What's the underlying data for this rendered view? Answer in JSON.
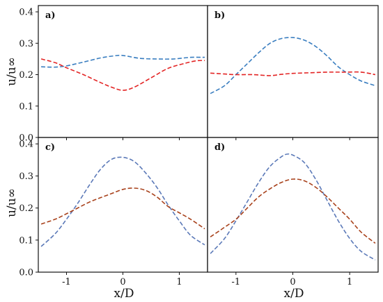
{
  "figure": {
    "ylabel": "u/u∞",
    "xlabel": "x/D"
  },
  "colors": {
    "blue": "#3a7ec0",
    "red": "#e32424",
    "brown": "#a8411b",
    "slate": "#5b79b8",
    "axes": "#111111"
  },
  "chart_data": [
    {
      "type": "line",
      "panel": "a)",
      "xlim": [
        -1.5,
        1.5
      ],
      "ylim": [
        0,
        0.42
      ],
      "xticks": [
        -1,
        0,
        1
      ],
      "yticks": [
        "0.0",
        "0.1",
        "0.2",
        "0.3",
        "0.4"
      ],
      "show_yticks": true,
      "show_xticks": false,
      "series": [
        {
          "color": "blue",
          "x": [
            -1.45,
            -1.2,
            -1.0,
            -0.7,
            -0.4,
            -0.15,
            0.0,
            0.3,
            0.6,
            0.9,
            1.2,
            1.45
          ],
          "values": [
            0.225,
            0.224,
            0.228,
            0.24,
            0.253,
            0.26,
            0.261,
            0.252,
            0.25,
            0.25,
            0.255,
            0.255
          ]
        },
        {
          "color": "red",
          "x": [
            -1.45,
            -1.2,
            -1.0,
            -0.7,
            -0.4,
            -0.2,
            0.0,
            0.2,
            0.5,
            0.8,
            1.1,
            1.3,
            1.45
          ],
          "values": [
            0.25,
            0.238,
            0.222,
            0.2,
            0.175,
            0.16,
            0.15,
            0.16,
            0.19,
            0.22,
            0.236,
            0.244,
            0.245
          ]
        }
      ]
    },
    {
      "type": "line",
      "panel": "b)",
      "xlim": [
        -1.5,
        1.5
      ],
      "ylim": [
        0,
        0.42
      ],
      "xticks": [
        -1,
        0,
        1
      ],
      "show_yticks": false,
      "show_xticks": false,
      "series": [
        {
          "color": "blue",
          "x": [
            -1.45,
            -1.2,
            -1.0,
            -0.8,
            -0.6,
            -0.4,
            -0.2,
            0.0,
            0.2,
            0.4,
            0.6,
            0.8,
            1.0,
            1.2,
            1.45
          ],
          "values": [
            0.14,
            0.165,
            0.2,
            0.235,
            0.27,
            0.3,
            0.315,
            0.318,
            0.31,
            0.29,
            0.26,
            0.225,
            0.2,
            0.18,
            0.165
          ]
        },
        {
          "color": "red",
          "x": [
            -1.45,
            -1.2,
            -1.0,
            -0.7,
            -0.4,
            -0.2,
            0.0,
            0.3,
            0.6,
            0.9,
            1.2,
            1.45
          ],
          "values": [
            0.205,
            0.202,
            0.2,
            0.2,
            0.197,
            0.201,
            0.204,
            0.206,
            0.208,
            0.208,
            0.208,
            0.2
          ]
        }
      ]
    },
    {
      "type": "line",
      "panel": "c)",
      "xlim": [
        -1.5,
        1.5
      ],
      "ylim": [
        0,
        0.42
      ],
      "xticks": [
        -1,
        0,
        1
      ],
      "yticks": [
        "0.0",
        "0.1",
        "0.2",
        "0.3",
        "0.4"
      ],
      "show_yticks": true,
      "show_xticks": true,
      "series": [
        {
          "color": "slate",
          "x": [
            -1.45,
            -1.2,
            -1.0,
            -0.8,
            -0.6,
            -0.4,
            -0.2,
            0.0,
            0.2,
            0.4,
            0.6,
            0.8,
            1.0,
            1.2,
            1.45
          ],
          "values": [
            0.08,
            0.12,
            0.165,
            0.215,
            0.27,
            0.32,
            0.352,
            0.358,
            0.345,
            0.31,
            0.265,
            0.21,
            0.16,
            0.115,
            0.085
          ]
        },
        {
          "color": "brown",
          "x": [
            -1.45,
            -1.2,
            -1.0,
            -0.8,
            -0.6,
            -0.4,
            -0.2,
            0.0,
            0.2,
            0.4,
            0.6,
            0.8,
            1.0,
            1.2,
            1.45
          ],
          "values": [
            0.15,
            0.165,
            0.182,
            0.2,
            0.218,
            0.232,
            0.245,
            0.258,
            0.262,
            0.255,
            0.235,
            0.205,
            0.185,
            0.165,
            0.135
          ]
        }
      ]
    },
    {
      "type": "line",
      "panel": "d)",
      "xlim": [
        -1.5,
        1.5
      ],
      "ylim": [
        0,
        0.42
      ],
      "xticks": [
        -1,
        0,
        1
      ],
      "show_yticks": false,
      "show_xticks": true,
      "series": [
        {
          "color": "slate",
          "x": [
            -1.45,
            -1.2,
            -1.0,
            -0.8,
            -0.6,
            -0.4,
            -0.2,
            -0.1,
            0.0,
            0.2,
            0.4,
            0.6,
            0.8,
            1.0,
            1.2,
            1.45
          ],
          "values": [
            0.058,
            0.105,
            0.16,
            0.22,
            0.28,
            0.33,
            0.36,
            0.368,
            0.365,
            0.342,
            0.29,
            0.225,
            0.16,
            0.105,
            0.065,
            0.038
          ]
        },
        {
          "color": "brown",
          "x": [
            -1.45,
            -1.2,
            -1.0,
            -0.8,
            -0.6,
            -0.4,
            -0.2,
            0.0,
            0.2,
            0.4,
            0.6,
            0.8,
            1.0,
            1.2,
            1.45
          ],
          "values": [
            0.11,
            0.14,
            0.165,
            0.2,
            0.235,
            0.26,
            0.28,
            0.29,
            0.285,
            0.265,
            0.235,
            0.2,
            0.165,
            0.125,
            0.09
          ]
        }
      ]
    }
  ]
}
